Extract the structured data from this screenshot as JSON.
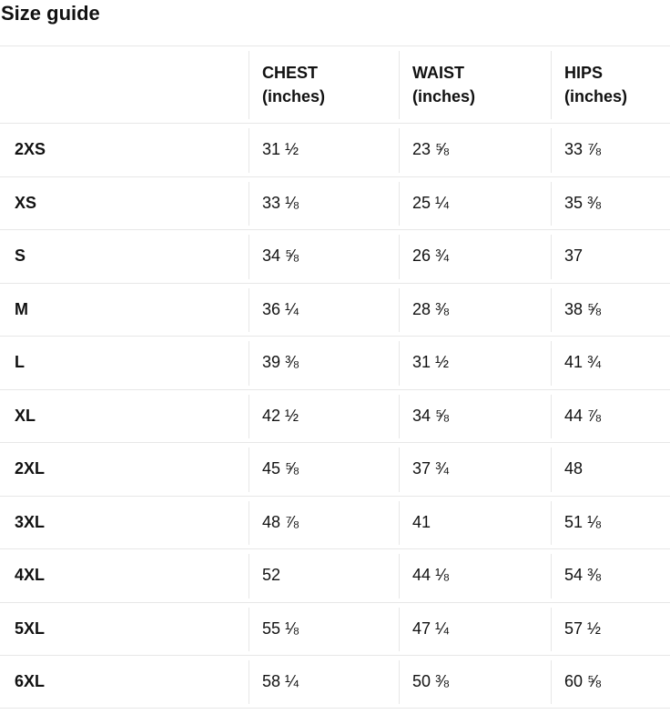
{
  "title": "Size guide",
  "colors": {
    "text": "#111111",
    "border": "#e7e7e7",
    "background": "#ffffff"
  },
  "table": {
    "columns": [
      {
        "label": "CHEST",
        "unit": "(inches)"
      },
      {
        "label": "WAIST",
        "unit": "(inches)"
      },
      {
        "label": "HIPS",
        "unit": "(inches)"
      }
    ],
    "rows": [
      {
        "size": "2XS",
        "chest": "31 ½",
        "waist": "23 ⅝",
        "hips": "33 ⅞"
      },
      {
        "size": "XS",
        "chest": "33 ⅛",
        "waist": "25 ¼",
        "hips": "35 ⅜"
      },
      {
        "size": "S",
        "chest": "34 ⅝",
        "waist": "26 ¾",
        "hips": "37"
      },
      {
        "size": "M",
        "chest": "36 ¼",
        "waist": "28 ⅜",
        "hips": "38 ⅝"
      },
      {
        "size": "L",
        "chest": "39 ⅜",
        "waist": "31 ½",
        "hips": "41 ¾"
      },
      {
        "size": "XL",
        "chest": "42 ½",
        "waist": "34 ⅝",
        "hips": "44 ⅞"
      },
      {
        "size": "2XL",
        "chest": "45 ⅝",
        "waist": "37 ¾",
        "hips": "48"
      },
      {
        "size": "3XL",
        "chest": "48 ⅞",
        "waist": "41",
        "hips": "51 ⅛"
      },
      {
        "size": "4XL",
        "chest": "52",
        "waist": "44 ⅛",
        "hips": "54 ⅜"
      },
      {
        "size": "5XL",
        "chest": "55 ⅛",
        "waist": "47 ¼",
        "hips": "57 ½"
      },
      {
        "size": "6XL",
        "chest": "58 ¼",
        "waist": "50 ⅜",
        "hips": "60 ⅝"
      }
    ]
  }
}
